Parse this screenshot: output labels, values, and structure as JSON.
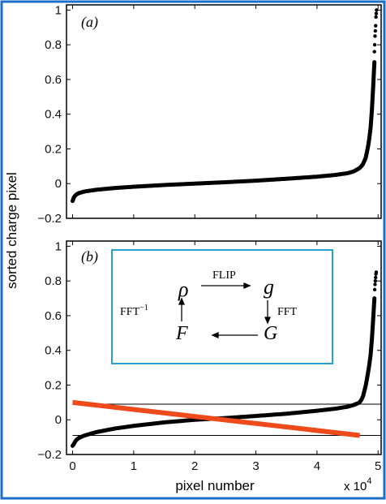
{
  "colors": {
    "frame": "#1b6fc9",
    "axes": "#000000",
    "points": "#000000",
    "fit_line": "#ee4a1c",
    "inset_border": "#2a9fd6"
  },
  "axes_text": {
    "ylabel": "sorted charge pixel",
    "xlabel": "pixel number",
    "x_multiplier": "x 10",
    "x_multiplier_exp": "4"
  },
  "chart_data": [
    {
      "type": "scatter",
      "panel_label": "(a)",
      "xlim": [
        -0.1,
        5.05
      ],
      "ylim": [
        -0.2,
        1.03
      ],
      "yticks": [
        -0.2,
        0,
        0.2,
        0.4,
        0.6,
        0.8,
        1
      ],
      "ytick_labels": [
        "−0.2",
        "0",
        "0.2",
        "0.4",
        "0.6",
        "0.8",
        "1"
      ],
      "xticks": [
        0,
        1,
        2,
        3,
        4,
        5
      ],
      "series": [
        {
          "curve_x": [
            0.0,
            0.02,
            0.05,
            0.1,
            0.2,
            0.4,
            0.7,
            1.0,
            1.5,
            2.0,
            2.5,
            3.0,
            3.5,
            4.0,
            4.3,
            4.5,
            4.6,
            4.7,
            4.75,
            4.8,
            4.85,
            4.88,
            4.9,
            4.92,
            4.94
          ],
          "curve_y": [
            -0.1,
            -0.08,
            -0.065,
            -0.055,
            -0.045,
            -0.035,
            -0.025,
            -0.018,
            -0.008,
            0.0,
            0.008,
            0.017,
            0.028,
            0.04,
            0.05,
            0.06,
            0.07,
            0.09,
            0.11,
            0.15,
            0.24,
            0.33,
            0.43,
            0.56,
            0.7
          ],
          "tail_x": [
            4.94,
            4.945,
            4.95,
            4.955,
            4.96,
            4.965,
            4.97,
            4.975
          ],
          "tail_y": [
            0.76,
            0.8,
            0.85,
            0.88,
            0.91,
            0.96,
            0.98,
            1.0
          ]
        }
      ]
    },
    {
      "type": "scatter",
      "panel_label": "(b)",
      "xlim": [
        -0.1,
        5.05
      ],
      "ylim": [
        -0.2,
        1.03
      ],
      "yticks": [
        -0.2,
        0,
        0.2,
        0.4,
        0.6,
        0.8,
        1
      ],
      "ytick_labels": [
        "−0.2",
        "0",
        "0.2",
        "0.4",
        "0.6",
        "0.8",
        "1"
      ],
      "xticks": [
        0,
        1,
        2,
        3,
        4,
        5
      ],
      "xtick_labels": [
        "0",
        "1",
        "2",
        "3",
        "4",
        "5"
      ],
      "series": [
        {
          "curve_x": [
            0.0,
            0.02,
            0.05,
            0.1,
            0.2,
            0.4,
            0.7,
            1.0,
            1.5,
            2.0,
            2.5,
            3.0,
            3.5,
            4.0,
            4.3,
            4.5,
            4.6,
            4.7,
            4.75,
            4.8,
            4.85,
            4.88,
            4.9,
            4.92,
            4.94
          ],
          "curve_y": [
            -0.15,
            -0.14,
            -0.12,
            -0.105,
            -0.09,
            -0.07,
            -0.05,
            -0.035,
            -0.015,
            0.0,
            0.01,
            0.022,
            0.035,
            0.052,
            0.064,
            0.075,
            0.085,
            0.1,
            0.13,
            0.2,
            0.3,
            0.38,
            0.47,
            0.58,
            0.7
          ],
          "tail_x": [
            4.945,
            4.95,
            4.955,
            4.96,
            4.965,
            4.97
          ],
          "tail_y": [
            0.75,
            0.78,
            0.8,
            0.82,
            0.84,
            0.85
          ]
        }
      ],
      "hlines": [
        0.09,
        -0.09
      ],
      "fit_line": {
        "x": [
          0.0,
          4.7
        ],
        "y": [
          0.1,
          -0.09
        ]
      },
      "inset": {
        "rho": "ρ",
        "g": "g",
        "F": "F",
        "G": "G",
        "flip": "FLIP",
        "fft": "FFT",
        "fft_inv": "FFT",
        "fft_inv_exp": "−1"
      }
    }
  ]
}
